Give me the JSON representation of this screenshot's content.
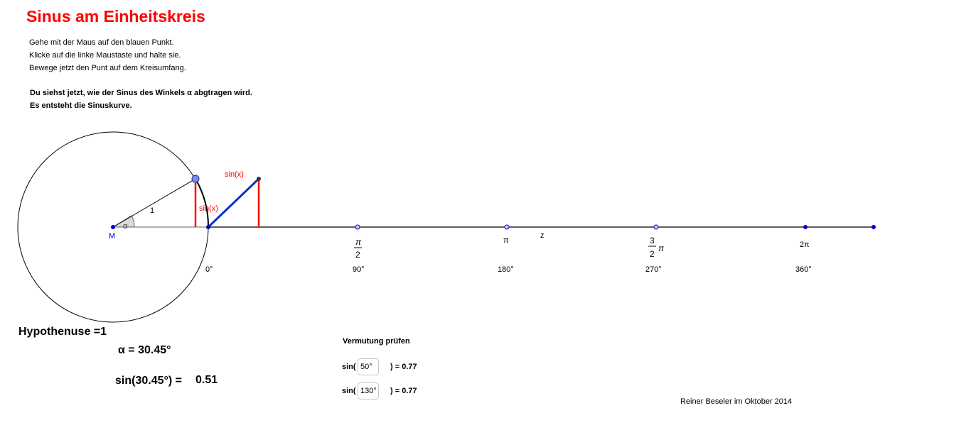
{
  "title": "Sinus am Einheitskreis",
  "instructions": [
    "Gehe mit der Maus auf den blauen Punkt.",
    "Klicke auf die linke Maustaste und halte sie.",
    "Bewege jetzt den Punt auf dem Kreisumfang."
  ],
  "bold_text": [
    "Du siehst jetzt, wie der Sinus des Winkels α abgtragen wird.",
    "Es entsteht die Sinuskurve."
  ],
  "geometry": {
    "center_label": "M",
    "angle_label": "α",
    "radius_label": "1",
    "sin_label_circle": "sin(x)",
    "sin_label_graph": "sin(x)",
    "z_label": "z",
    "pi_num": "π",
    "pi_den": "2",
    "pi_label": "π",
    "three_num": "3",
    "three_den": "2",
    "three_pi": "π",
    "two_pi": "2π",
    "deg0": "0°",
    "deg90": "90°",
    "deg180": "180°",
    "deg270": "270°",
    "deg360": "360°"
  },
  "hypothenuse": "Hypothenuse =1",
  "alpha_value": "α = 30.45°",
  "sin_label": "sin(30.45°) =",
  "sin_value": "0.51",
  "check": {
    "title": "Vermutung prüfen",
    "prefix1": "sin(",
    "input1": "50°",
    "result1": ") = 0.77",
    "prefix2": "sin(",
    "input2": "130°",
    "result2": ") = 0.77"
  },
  "author": "Reiner Beseler im Oktober 2014",
  "colors": {
    "title": "#ff0000",
    "sine_segment": "#ff0000",
    "hypotenuse_graph": "#0033cc",
    "point": "#0000cc",
    "drag_point": "#7b8de8"
  }
}
